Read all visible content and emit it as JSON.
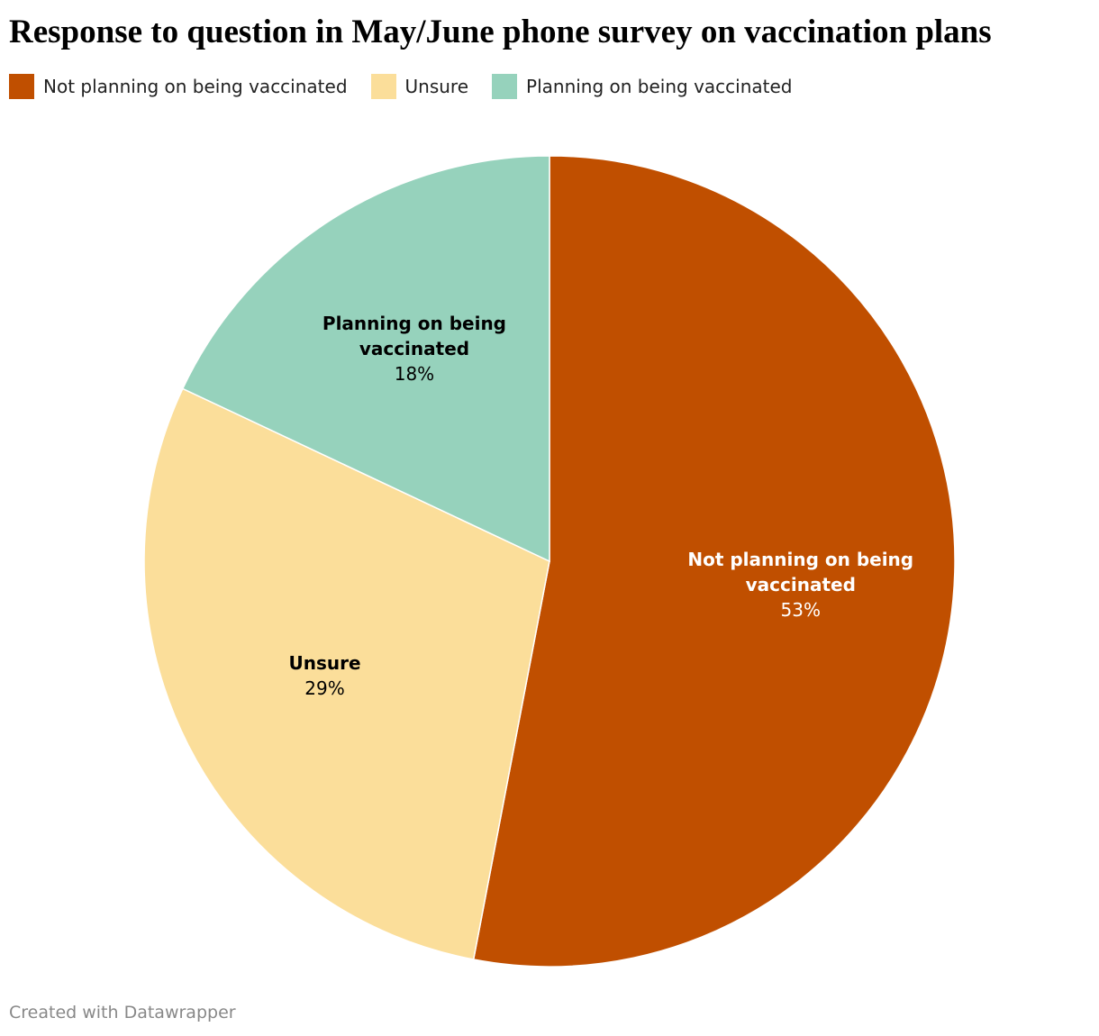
{
  "chart_data": {
    "type": "pie",
    "title": "Response to question in May/June phone survey on vaccination plans",
    "categories": [
      "Not planning on being vaccinated",
      "Unsure",
      "Planning on being vaccinated"
    ],
    "values": [
      53,
      29,
      18
    ],
    "value_labels": [
      "53%",
      "29%",
      "18%"
    ],
    "colors": [
      "#c04f00",
      "#fbde9a",
      "#96d2bc"
    ],
    "legend": "top-left",
    "credit": "Created with Datawrapper"
  }
}
